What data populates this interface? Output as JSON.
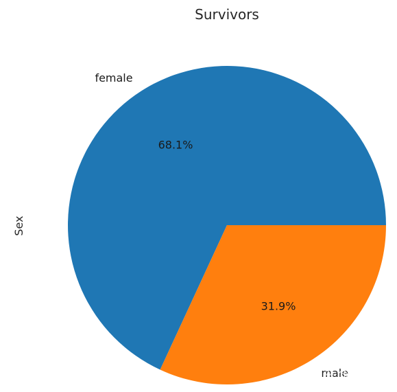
{
  "chart_data": {
    "type": "pie",
    "title": "Survivors",
    "ylabel": "Sex",
    "categories": [
      "female",
      "male"
    ],
    "values": [
      68.1,
      31.9
    ],
    "value_labels": [
      "68.1%",
      "31.9%"
    ],
    "colors": [
      "#1f77b4",
      "#ff7f0e"
    ],
    "start_angle_deg": 0,
    "direction": "counterclockwise"
  },
  "watermark": {
    "text": "知乎 @张陈亚"
  }
}
